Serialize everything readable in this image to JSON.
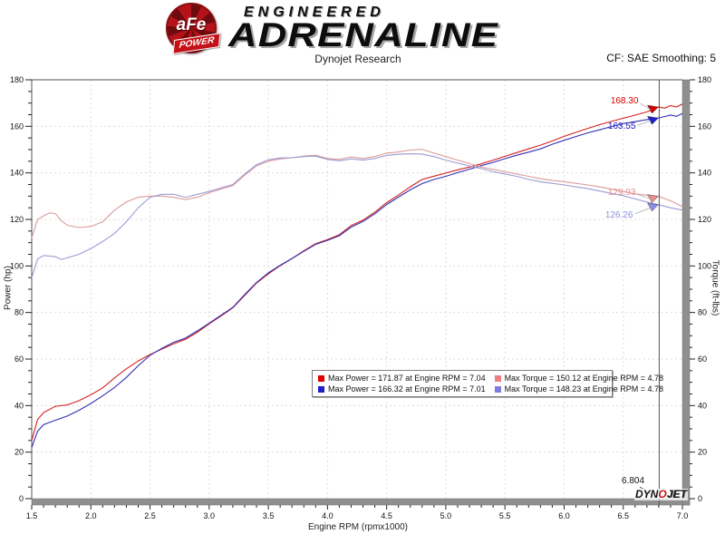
{
  "header": {
    "badge_main": "aFe",
    "badge_sub": "POWER",
    "brand_line1": "ENGINEERED",
    "brand_line2": "ADRENALINE",
    "subtitle": "Dynojet Research",
    "smoothing": "CF: SAE Smoothing: 5"
  },
  "footer": {
    "dynojet_1": "DYN",
    "dynojet_2": "O",
    "dynojet_3": "JET"
  },
  "chart_data": {
    "type": "line",
    "title": "",
    "xlabel": "Engine RPM (rpmx1000)",
    "ylabel_left": "Power (hp)",
    "ylabel_right": "Torque (ft-lbs)",
    "xlim": [
      1.5,
      7.0
    ],
    "ylim": [
      0,
      180
    ],
    "x_ticks": [
      1.5,
      2.0,
      2.5,
      3.0,
      3.5,
      4.0,
      4.5,
      5.0,
      5.5,
      6.0,
      6.5,
      7.0
    ],
    "x_minor_step": 0.1,
    "y_ticks": [
      0,
      20,
      40,
      60,
      80,
      100,
      120,
      140,
      160,
      180
    ],
    "y_minor_step": 5,
    "grid": "dotted",
    "grid_color": "#e6dada",
    "legend_position": "bottom-center-inside",
    "legend": [
      {
        "label": "Max Power = 171.87 at Engine RPM = 7.04",
        "color": "#e00000"
      },
      {
        "label": "Max Power = 166.32 at Engine RPM = 7.01",
        "color": "#2020c8"
      },
      {
        "label": "Max Torque = 150.12 at Engine RPM = 4.78",
        "color": "#ee7d7d"
      },
      {
        "label": "Max Torque = 148.23 at Engine RPM = 4.78",
        "color": "#7d7de0"
      }
    ],
    "cursor": {
      "rpm": 6.804,
      "label": "6.804",
      "readouts": [
        {
          "series": "power_red",
          "label": "168.30",
          "value": 168.3,
          "color": "#d40000"
        },
        {
          "series": "power_blue",
          "label": "163.55",
          "value": 163.55,
          "color": "#2020c8"
        },
        {
          "series": "torque_red",
          "label": "129.93",
          "value": 129.93,
          "color": "#e88e8e"
        },
        {
          "series": "torque_blue",
          "label": "126.26",
          "value": 126.26,
          "color": "#8e8ee0"
        }
      ]
    },
    "series": [
      {
        "name": "power_red",
        "axis": "left",
        "color": "#d42020",
        "points": [
          [
            1.5,
            25
          ],
          [
            1.55,
            34
          ],
          [
            1.6,
            37
          ],
          [
            1.7,
            39.7
          ],
          [
            1.8,
            40.3
          ],
          [
            1.9,
            42.1
          ],
          [
            2.0,
            44.6
          ],
          [
            2.1,
            47.6
          ],
          [
            2.2,
            51.9
          ],
          [
            2.3,
            55.8
          ],
          [
            2.4,
            59.2
          ],
          [
            2.5,
            61.9
          ],
          [
            2.6,
            64.3
          ],
          [
            2.7,
            66.6
          ],
          [
            2.8,
            68.5
          ],
          [
            2.9,
            71.5
          ],
          [
            3.0,
            75.1
          ],
          [
            3.1,
            78.5
          ],
          [
            3.2,
            82.0
          ],
          [
            3.3,
            87.3
          ],
          [
            3.4,
            92.6
          ],
          [
            3.5,
            96.6
          ],
          [
            3.6,
            100.1
          ],
          [
            3.7,
            103.2
          ],
          [
            3.8,
            106.5
          ],
          [
            3.9,
            109.6
          ],
          [
            4.0,
            111.3
          ],
          [
            4.1,
            113.4
          ],
          [
            4.2,
            117.4
          ],
          [
            4.3,
            119.7
          ],
          [
            4.4,
            123.1
          ],
          [
            4.5,
            127.2
          ],
          [
            4.6,
            130.5
          ],
          [
            4.7,
            134.0
          ],
          [
            4.8,
            137.2
          ],
          [
            4.9,
            138.6
          ],
          [
            5.0,
            139.9
          ],
          [
            5.1,
            141.3
          ],
          [
            5.2,
            142.5
          ],
          [
            5.3,
            143.9
          ],
          [
            5.4,
            145.5
          ],
          [
            5.5,
            147.1
          ],
          [
            5.6,
            148.7
          ],
          [
            5.7,
            150.3
          ],
          [
            5.8,
            151.9
          ],
          [
            5.9,
            153.7
          ],
          [
            6.0,
            155.7
          ],
          [
            6.1,
            157.4
          ],
          [
            6.2,
            159.1
          ],
          [
            6.3,
            160.7
          ],
          [
            6.4,
            162.1
          ],
          [
            6.5,
            163.5
          ],
          [
            6.6,
            164.8
          ],
          [
            6.7,
            166.2
          ],
          [
            6.8,
            168.3
          ],
          [
            6.85,
            167.8
          ],
          [
            6.9,
            168.9
          ],
          [
            6.95,
            168.3
          ],
          [
            7.0,
            169.6
          ]
        ]
      },
      {
        "name": "power_blue",
        "axis": "left",
        "color": "#3030b4",
        "points": [
          [
            1.5,
            22
          ],
          [
            1.55,
            29
          ],
          [
            1.6,
            31.8
          ],
          [
            1.7,
            33.7
          ],
          [
            1.8,
            35.5
          ],
          [
            1.9,
            38.0
          ],
          [
            2.0,
            40.9
          ],
          [
            2.1,
            44.2
          ],
          [
            2.2,
            47.8
          ],
          [
            2.3,
            52.1
          ],
          [
            2.4,
            57.1
          ],
          [
            2.5,
            61.6
          ],
          [
            2.6,
            64.6
          ],
          [
            2.7,
            67.2
          ],
          [
            2.8,
            69.0
          ],
          [
            2.9,
            72.1
          ],
          [
            3.0,
            75.4
          ],
          [
            3.1,
            78.8
          ],
          [
            3.2,
            82.2
          ],
          [
            3.3,
            87.7
          ],
          [
            3.4,
            92.9
          ],
          [
            3.5,
            97.0
          ],
          [
            3.6,
            100.3
          ],
          [
            3.7,
            103.2
          ],
          [
            3.8,
            106.3
          ],
          [
            3.9,
            109.3
          ],
          [
            4.0,
            111.0
          ],
          [
            4.1,
            113.0
          ],
          [
            4.2,
            116.7
          ],
          [
            4.3,
            119.1
          ],
          [
            4.4,
            122.4
          ],
          [
            4.5,
            126.4
          ],
          [
            4.6,
            129.6
          ],
          [
            4.7,
            132.7
          ],
          [
            4.8,
            135.4
          ],
          [
            4.9,
            137.2
          ],
          [
            5.0,
            138.5
          ],
          [
            5.1,
            140.1
          ],
          [
            5.2,
            141.6
          ],
          [
            5.3,
            143.1
          ],
          [
            5.4,
            144.5
          ],
          [
            5.5,
            146.1
          ],
          [
            5.6,
            147.6
          ],
          [
            5.7,
            148.9
          ],
          [
            5.8,
            150.3
          ],
          [
            5.9,
            152.3
          ],
          [
            6.0,
            154.0
          ],
          [
            6.1,
            155.6
          ],
          [
            6.2,
            157.2
          ],
          [
            6.3,
            158.5
          ],
          [
            6.4,
            159.9
          ],
          [
            6.5,
            161.2
          ],
          [
            6.6,
            162.0
          ],
          [
            6.7,
            162.9
          ],
          [
            6.8,
            163.6
          ],
          [
            6.9,
            164.8
          ],
          [
            6.95,
            164.3
          ],
          [
            7.0,
            165.5
          ]
        ]
      },
      {
        "name": "torque_red",
        "axis": "right",
        "color": "#dc9b9b",
        "points": [
          [
            1.5,
            112
          ],
          [
            1.55,
            120
          ],
          [
            1.6,
            121.5
          ],
          [
            1.65,
            122.8
          ],
          [
            1.7,
            122.5
          ],
          [
            1.75,
            119.5
          ],
          [
            1.8,
            117.5
          ],
          [
            1.9,
            116.5
          ],
          [
            2.0,
            117.0
          ],
          [
            2.1,
            119.0
          ],
          [
            2.2,
            124.0
          ],
          [
            2.3,
            127.5
          ],
          [
            2.4,
            129.5
          ],
          [
            2.5,
            130.0
          ],
          [
            2.6,
            130.0
          ],
          [
            2.7,
            129.5
          ],
          [
            2.8,
            128.5
          ],
          [
            2.9,
            129.5
          ],
          [
            3.0,
            131.5
          ],
          [
            3.1,
            133.0
          ],
          [
            3.2,
            134.5
          ],
          [
            3.3,
            139.0
          ],
          [
            3.4,
            143.0
          ],
          [
            3.5,
            145.0
          ],
          [
            3.6,
            146.0
          ],
          [
            3.7,
            146.5
          ],
          [
            3.8,
            147.2
          ],
          [
            3.9,
            147.6
          ],
          [
            4.0,
            146.2
          ],
          [
            4.1,
            145.8
          ],
          [
            4.2,
            146.8
          ],
          [
            4.3,
            146.2
          ],
          [
            4.4,
            147.0
          ],
          [
            4.5,
            148.5
          ],
          [
            4.6,
            149.0
          ],
          [
            4.7,
            149.8
          ],
          [
            4.8,
            150.1
          ],
          [
            4.9,
            148.5
          ],
          [
            5.0,
            147.0
          ],
          [
            5.1,
            145.5
          ],
          [
            5.2,
            144.0
          ],
          [
            5.3,
            142.5
          ],
          [
            5.4,
            141.5
          ],
          [
            5.5,
            140.5
          ],
          [
            5.6,
            139.5
          ],
          [
            5.7,
            138.5
          ],
          [
            5.8,
            137.5
          ],
          [
            5.9,
            136.8
          ],
          [
            6.0,
            136.2
          ],
          [
            6.1,
            135.5
          ],
          [
            6.2,
            134.8
          ],
          [
            6.3,
            134.0
          ],
          [
            6.4,
            133.0
          ],
          [
            6.5,
            132.0
          ],
          [
            6.6,
            131.0
          ],
          [
            6.7,
            130.4
          ],
          [
            6.8,
            129.9
          ],
          [
            6.9,
            128.0
          ],
          [
            7.0,
            125.5
          ]
        ]
      },
      {
        "name": "torque_blue",
        "axis": "right",
        "color": "#9b9bd4",
        "points": [
          [
            1.5,
            95
          ],
          [
            1.55,
            103
          ],
          [
            1.6,
            104.5
          ],
          [
            1.7,
            104.0
          ],
          [
            1.75,
            102.8
          ],
          [
            1.8,
            103.5
          ],
          [
            1.9,
            105.0
          ],
          [
            2.0,
            107.5
          ],
          [
            2.1,
            110.5
          ],
          [
            2.2,
            114.0
          ],
          [
            2.3,
            119.0
          ],
          [
            2.4,
            125.0
          ],
          [
            2.5,
            129.5
          ],
          [
            2.6,
            130.8
          ],
          [
            2.7,
            130.8
          ],
          [
            2.8,
            129.5
          ],
          [
            2.9,
            130.8
          ],
          [
            3.0,
            132.0
          ],
          [
            3.1,
            133.5
          ],
          [
            3.2,
            135.0
          ],
          [
            3.3,
            139.5
          ],
          [
            3.4,
            143.5
          ],
          [
            3.5,
            145.6
          ],
          [
            3.6,
            146.4
          ],
          [
            3.7,
            146.5
          ],
          [
            3.8,
            147.0
          ],
          [
            3.9,
            147.2
          ],
          [
            4.0,
            145.8
          ],
          [
            4.1,
            145.2
          ],
          [
            4.2,
            146.0
          ],
          [
            4.3,
            145.5
          ],
          [
            4.4,
            146.2
          ],
          [
            4.5,
            147.5
          ],
          [
            4.6,
            148.0
          ],
          [
            4.7,
            148.2
          ],
          [
            4.8,
            148.1
          ],
          [
            4.9,
            147.0
          ],
          [
            5.0,
            145.5
          ],
          [
            5.1,
            144.2
          ],
          [
            5.2,
            143.0
          ],
          [
            5.3,
            141.8
          ],
          [
            5.4,
            140.5
          ],
          [
            5.5,
            139.5
          ],
          [
            5.6,
            138.5
          ],
          [
            5.7,
            137.2
          ],
          [
            5.8,
            136.2
          ],
          [
            5.9,
            135.5
          ],
          [
            6.0,
            134.8
          ],
          [
            6.1,
            134.0
          ],
          [
            6.2,
            133.2
          ],
          [
            6.3,
            132.2
          ],
          [
            6.4,
            131.2
          ],
          [
            6.5,
            130.2
          ],
          [
            6.6,
            128.8
          ],
          [
            6.7,
            127.5
          ],
          [
            6.8,
            126.3
          ],
          [
            6.9,
            125.0
          ],
          [
            7.0,
            124.0
          ]
        ]
      }
    ]
  }
}
